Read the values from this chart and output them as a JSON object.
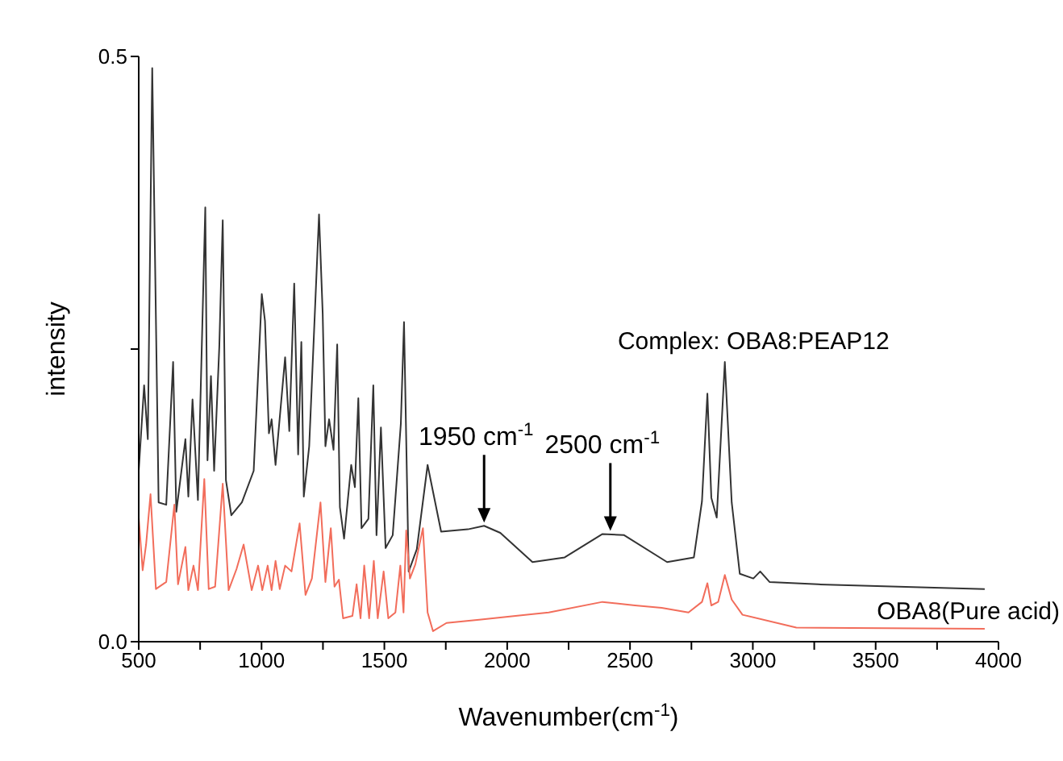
{
  "chart_data": {
    "type": "line",
    "xlabel": "Wavenumber(cm$^{-1}$)",
    "ylabel": "intensity",
    "xlim": [
      500,
      4000
    ],
    "ylim": [
      0,
      0.5
    ],
    "xticks": [
      500,
      {
        "value": 750,
        "label": null
      },
      1000,
      {
        "value": 1250,
        "label": null
      },
      1500,
      {
        "value": 1750,
        "label": null
      },
      2000,
      {
        "value": 2250,
        "label": null
      },
      2500,
      {
        "value": 2750,
        "label": null
      },
      3000,
      {
        "value": 3250,
        "label": null
      },
      3500,
      {
        "value": 3750,
        "label": null
      },
      4000
    ],
    "yticks": [
      {
        "value": 0,
        "label": "0.0"
      },
      {
        "value": 0.25,
        "label": null
      },
      0.5
    ],
    "marker": "none",
    "line_style": "solid",
    "annotations": [
      {
        "text": "1950 cm$^{-1}$",
        "x": 1906,
        "y": 0.099
      },
      {
        "text": "2500 cm$^{-1}$",
        "x": 2420,
        "y": 0.092
      }
    ],
    "series": [
      {
        "name": "Complex: OBA8:PEAP12",
        "color": "#333333",
        "x": [
          500,
          522,
          537,
          555,
          581,
          612,
          640,
          653,
          690,
          702,
          719,
          741,
          771,
          780,
          794,
          807,
          828,
          842,
          855,
          877,
          920,
          968,
          1001,
          1014,
          1030,
          1041,
          1057,
          1096,
          1113,
          1133,
          1149,
          1162,
          1172,
          1194,
          1234,
          1249,
          1260,
          1275,
          1293,
          1308,
          1319,
          1336,
          1365,
          1380,
          1394,
          1407,
          1435,
          1455,
          1468,
          1486,
          1505,
          1534,
          1567,
          1580,
          1599,
          1632,
          1676,
          1731,
          1840,
          1906,
          1972,
          2103,
          2234,
          2388,
          2476,
          2651,
          2760,
          2793,
          2815,
          2831,
          2853,
          2886,
          2914,
          2947,
          3002,
          3030,
          3068,
          3265,
          3944
        ],
        "values": [
          0.146,
          0.219,
          0.173,
          0.49,
          0.119,
          0.117,
          0.239,
          0.111,
          0.173,
          0.124,
          0.207,
          0.121,
          0.371,
          0.155,
          0.227,
          0.146,
          0.252,
          0.36,
          0.138,
          0.108,
          0.119,
          0.146,
          0.297,
          0.274,
          0.178,
          0.19,
          0.151,
          0.243,
          0.18,
          0.306,
          0.16,
          0.256,
          0.124,
          0.167,
          0.365,
          0.28,
          0.167,
          0.19,
          0.164,
          0.254,
          0.115,
          0.088,
          0.151,
          0.132,
          0.208,
          0.097,
          0.105,
          0.219,
          0.091,
          0.183,
          0.08,
          0.091,
          0.186,
          0.273,
          0.06,
          0.079,
          0.151,
          0.094,
          0.096,
          0.099,
          0.093,
          0.068,
          0.072,
          0.092,
          0.091,
          0.068,
          0.072,
          0.12,
          0.212,
          0.123,
          0.106,
          0.239,
          0.119,
          0.058,
          0.054,
          0.06,
          0.051,
          0.049,
          0.045
        ]
      },
      {
        "name": "OBA8(Pure acid)",
        "color": "#f26d5b",
        "x": [
          500,
          516,
          530,
          548,
          570,
          612,
          645,
          660,
          690,
          702,
          723,
          741,
          767,
          785,
          811,
          842,
          866,
          898,
          927,
          960,
          986,
          1003,
          1025,
          1041,
          1057,
          1074,
          1096,
          1122,
          1155,
          1179,
          1205,
          1240,
          1260,
          1282,
          1297,
          1315,
          1332,
          1370,
          1387,
          1403,
          1418,
          1438,
          1457,
          1473,
          1497,
          1516,
          1545,
          1565,
          1578,
          1589,
          1604,
          1626,
          1657,
          1676,
          1698,
          1753,
          1894,
          2169,
          2388,
          2520,
          2629,
          2738,
          2793,
          2815,
          2831,
          2859,
          2886,
          2914,
          2958,
          3177,
          3944
        ],
        "values": [
          0.106,
          0.061,
          0.083,
          0.126,
          0.045,
          0.051,
          0.117,
          0.049,
          0.081,
          0.044,
          0.065,
          0.044,
          0.139,
          0.045,
          0.047,
          0.135,
          0.044,
          0.062,
          0.083,
          0.044,
          0.065,
          0.044,
          0.065,
          0.044,
          0.069,
          0.045,
          0.065,
          0.06,
          0.101,
          0.04,
          0.054,
          0.119,
          0.051,
          0.097,
          0.047,
          0.053,
          0.02,
          0.022,
          0.049,
          0.02,
          0.065,
          0.02,
          0.069,
          0.02,
          0.06,
          0.02,
          0.025,
          0.065,
          0.025,
          0.095,
          0.054,
          0.066,
          0.097,
          0.025,
          0.009,
          0.016,
          0.019,
          0.025,
          0.034,
          0.031,
          0.029,
          0.025,
          0.034,
          0.05,
          0.031,
          0.034,
          0.057,
          0.036,
          0.023,
          0.012,
          0.011
        ]
      }
    ]
  }
}
